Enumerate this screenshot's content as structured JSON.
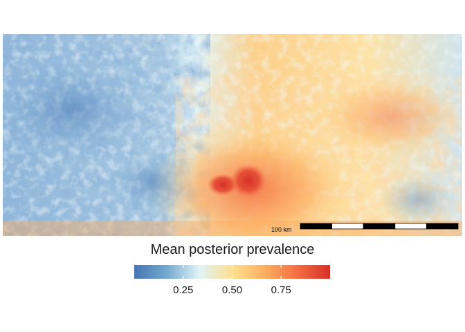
{
  "map": {
    "layer": "mean-posterior-prevalence-raster",
    "scale_bar": {
      "label": "100 km",
      "segments": 5,
      "colors": [
        "#000000",
        "#ffffff"
      ]
    }
  },
  "legend": {
    "title": "Mean posterior prevalence",
    "range": [
      0.0,
      1.0
    ],
    "ticks": [
      {
        "value": 0.25,
        "label": "0.25"
      },
      {
        "value": 0.5,
        "label": "0.50"
      },
      {
        "value": 0.75,
        "label": "0.75"
      }
    ],
    "palette": [
      "#4575b4",
      "#74a9cf",
      "#e0f3f8",
      "#fee090",
      "#fdae61",
      "#f46d43",
      "#d73027"
    ]
  }
}
